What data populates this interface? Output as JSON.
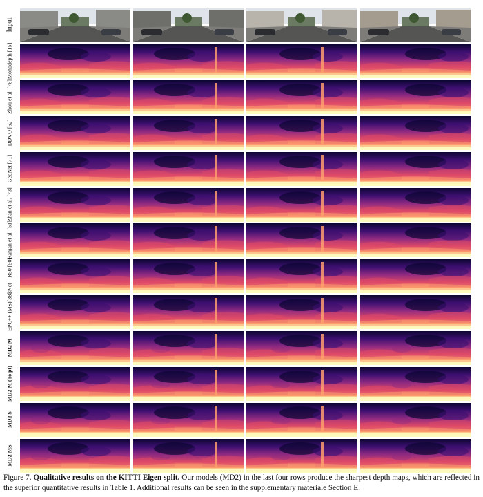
{
  "figure": {
    "rows": [
      {
        "label": "Input",
        "style": "input"
      },
      {
        "label": "Monodepth [15]",
        "style": "normal"
      },
      {
        "label": "Zhou et al. [76]",
        "style": "normal"
      },
      {
        "label": "DDVO [62]",
        "style": "normal"
      },
      {
        "label": "GeoNet [71]",
        "style": "normal"
      },
      {
        "label": "Zhan et al. [73]",
        "style": "normal"
      },
      {
        "label": "Ranjan et al. [51]",
        "style": "normal"
      },
      {
        "label": "3Net – R50 [50]",
        "style": "normal"
      },
      {
        "label": "EPC++ (MS)[38]",
        "style": "normal"
      },
      {
        "label": "MD2 M",
        "style": "bold"
      },
      {
        "label": "MD2 M (no pt)",
        "style": "bold"
      },
      {
        "label": "MD2 S",
        "style": "bold"
      },
      {
        "label": "MD2 MS",
        "style": "bold"
      }
    ],
    "columns": 4,
    "colormap": [
      "#0c0630",
      "#3b0f70",
      "#8c2981",
      "#de4968",
      "#fe9f6d",
      "#fcfdbf"
    ]
  },
  "caption": {
    "prefix": "Figure 7.",
    "title": "Qualitative results on the KITTI Eigen split.",
    "text": "Our models (MD2) in the last four rows produce the sharpest depth maps, which are reflected in the superior quantitative results in Table 1. Additional results can be seen in the supplementary materiale Section E."
  }
}
